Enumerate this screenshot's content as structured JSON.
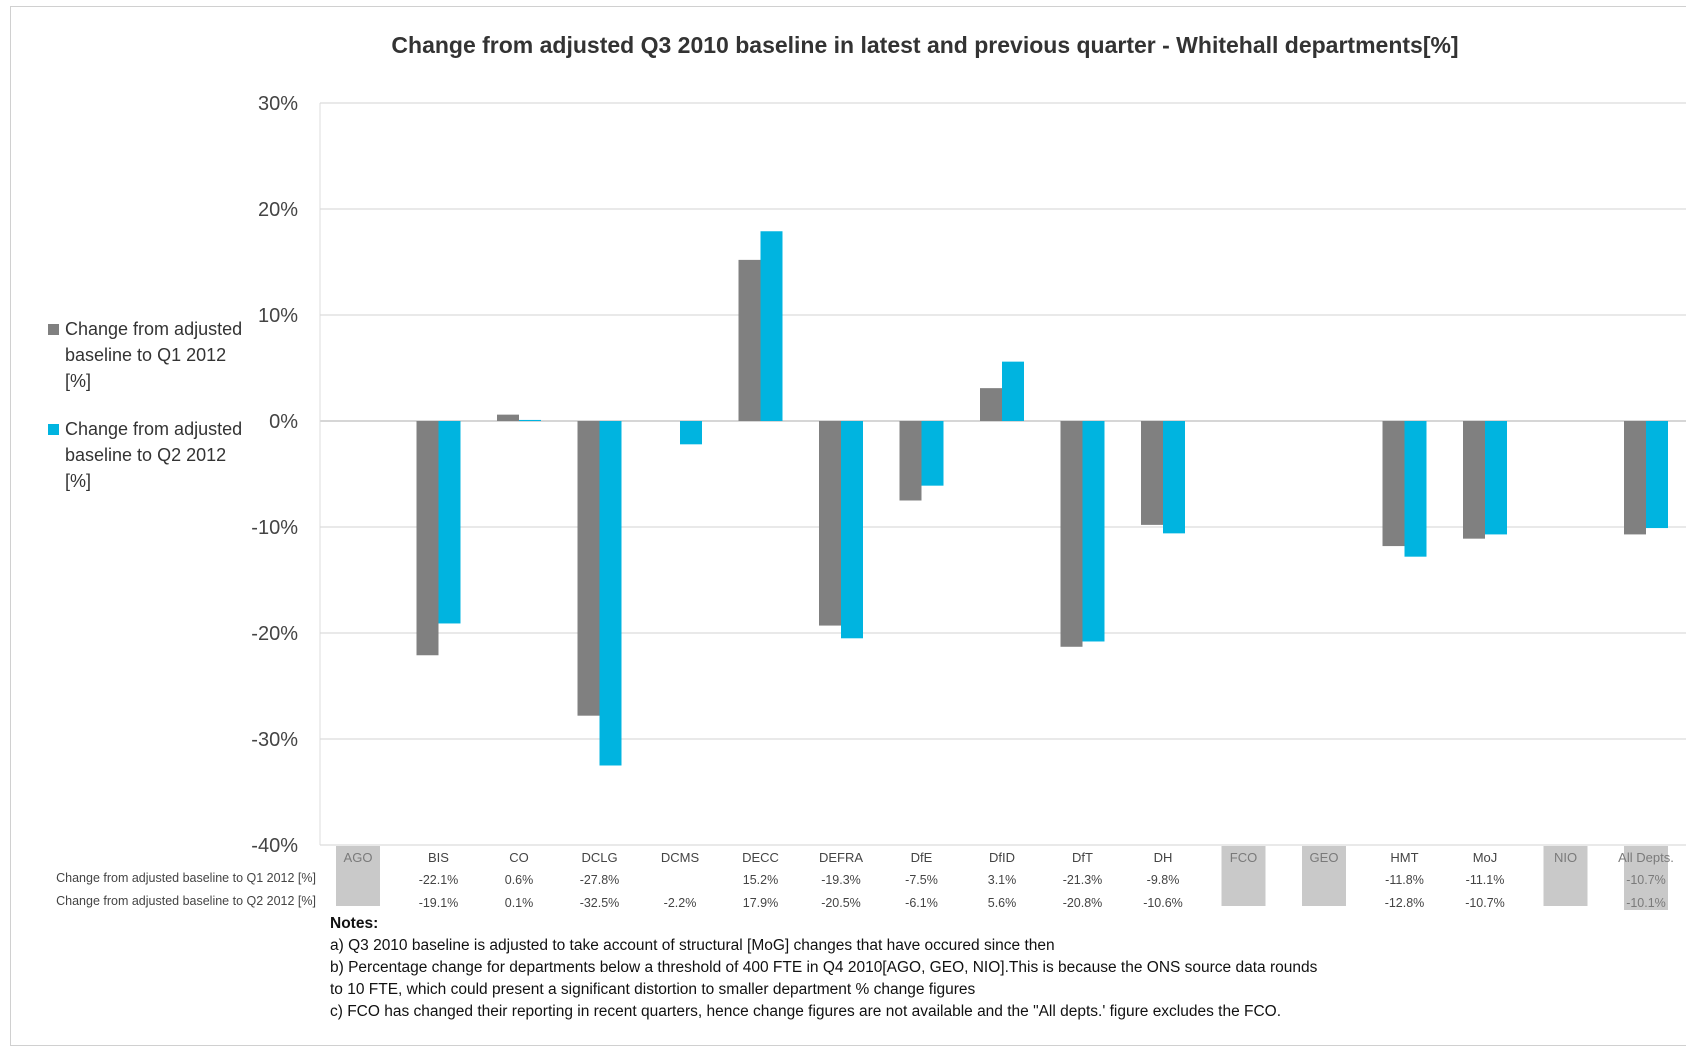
{
  "chart_data": {
    "type": "bar",
    "title": "Change from adjusted Q3 2010 baseline in latest and previous quarter - Whitehall  departments[%]",
    "ylim": [
      -40,
      30
    ],
    "yticks": [
      "30%",
      "20%",
      "10%",
      "0%",
      "-10%",
      "-20%",
      "-30%",
      "-40%"
    ],
    "ytick_values": [
      30,
      20,
      10,
      0,
      -10,
      -20,
      -30,
      -40
    ],
    "grid": true,
    "legend_position": "left",
    "categories": [
      "AGO",
      "BIS",
      "CO",
      "DCLG",
      "DCMS",
      "DECC",
      "DEFRA",
      "DfE",
      "DfID",
      "DfT",
      "DH",
      "FCO",
      "GEO",
      "HMT",
      "MoJ",
      "NIO",
      "All Depts."
    ],
    "greyed_categories": [
      "AGO",
      "FCO",
      "GEO",
      "NIO",
      "All Depts."
    ],
    "series": [
      {
        "name": "Change from adjusted baseline to Q1 2012 [%]",
        "color": "#808080",
        "values": [
          null,
          -22.1,
          0.6,
          -27.8,
          null,
          15.2,
          -19.3,
          -7.5,
          3.1,
          -21.3,
          -9.8,
          null,
          null,
          -11.8,
          -11.1,
          null,
          -10.7
        ],
        "labels": [
          "",
          "-22.1%",
          "0.6%",
          "-27.8%",
          "",
          "15.2%",
          "-19.3%",
          "-7.5%",
          "3.1%",
          "-21.3%",
          "-9.8%",
          "",
          "",
          "-11.8%",
          "-11.1%",
          "",
          "-10.7%"
        ]
      },
      {
        "name": "Change from adjusted baseline to Q2 2012 [%]",
        "color": "#00b4e0",
        "values": [
          null,
          -19.1,
          0.1,
          -32.5,
          -2.2,
          17.9,
          -20.5,
          -6.1,
          5.6,
          -20.8,
          -10.6,
          null,
          null,
          -12.8,
          -10.7,
          null,
          -10.1
        ],
        "labels": [
          "",
          "-19.1%",
          "0.1%",
          "-32.5%",
          "-2.2%",
          "17.9%",
          "-20.5%",
          "-6.1%",
          "5.6%",
          "-20.8%",
          "-10.6%",
          "",
          "",
          "-12.8%",
          "-10.7%",
          "",
          "-10.1%"
        ]
      }
    ]
  },
  "legend": {
    "q1_label": "Change from adjusted baseline to Q1 2012 [%]",
    "q2_label": "Change from adjusted baseline to Q2 2012 [%]"
  },
  "table": {
    "row1_label": "Change from adjusted baseline to Q1 2012 [%]",
    "row2_label": "Change from adjusted baseline to Q2 2012 [%]"
  },
  "notes": {
    "heading": "Notes:",
    "a": "a) Q3 2010 baseline is adjusted to take account of structural [MoG] changes that have occured since then",
    "b1": "b) Percentage change for departments below a threshold of 400 FTE in Q4 2010[AGO, GEO, NIO].This is because the ONS source data rounds",
    "b2": "to 10 FTE, which could present a significant distortion to smaller department % change figures",
    "c": "c) FCO has changed their reporting in recent quarters, hence change figures are not available and the \"All depts.' figure excludes the FCO."
  }
}
